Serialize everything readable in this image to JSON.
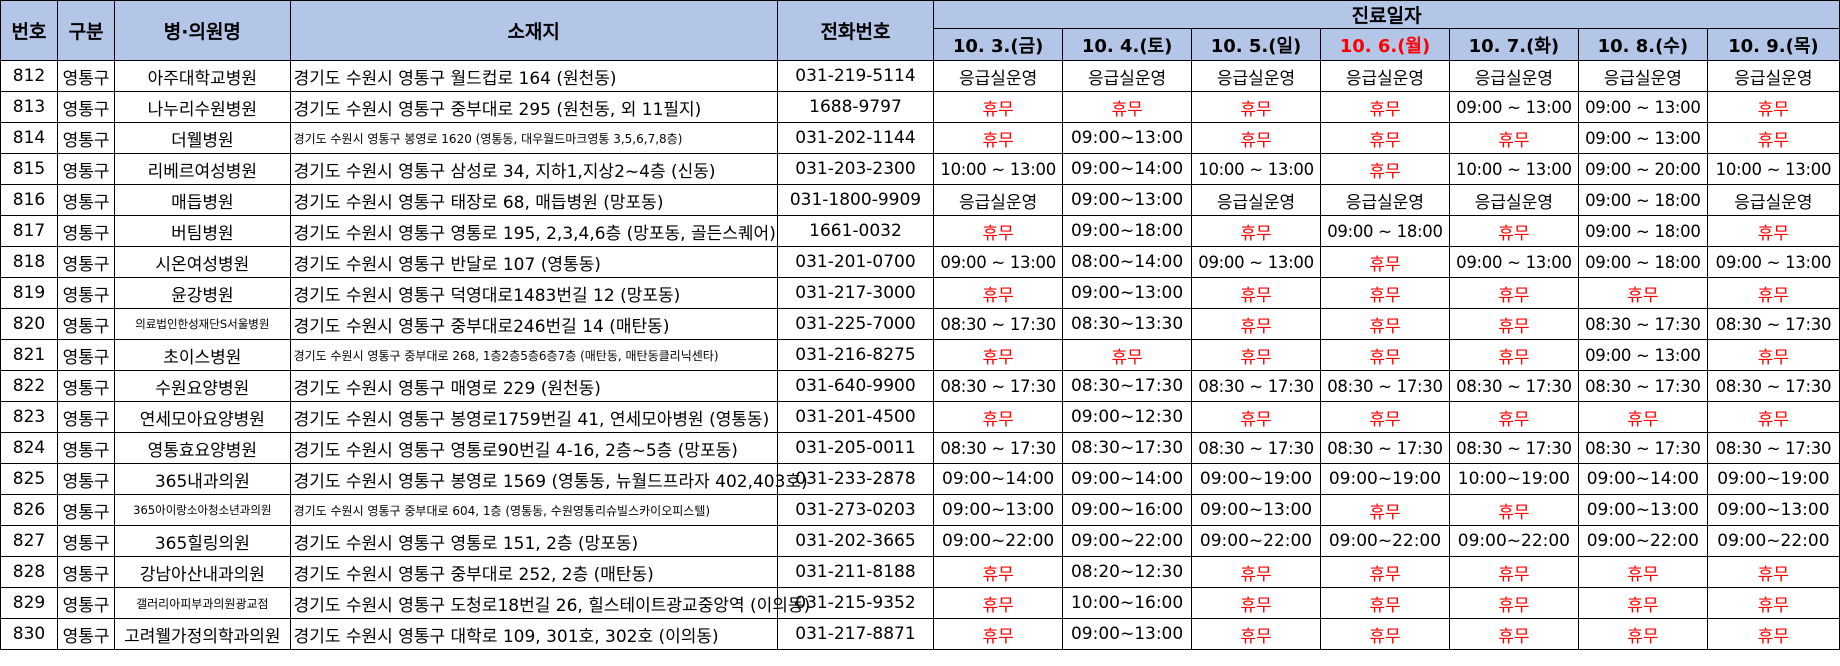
{
  "header": {
    "no": "번호",
    "category": "구분",
    "name": "병·의원명",
    "address": "소재지",
    "phone": "전화번호",
    "schedule": "진료일자",
    "dates": [
      "10. 3.(금)",
      "10. 4.(토)",
      "10. 5.(일)",
      "10. 6.(월)",
      "10. 7.(화)",
      "10. 8.(수)",
      "10. 9.(목)"
    ],
    "highlight_date_index": 3
  },
  "colors": {
    "header_bg": "#b4c6e7",
    "closed": "#ff0000"
  },
  "rows": [
    {
      "no": "812",
      "category": "영통구",
      "name": "아주대학교병원",
      "address": "경기도 수원시 영통구 월드컵로 164 (원천동)",
      "phone": "031-219-5114",
      "hours": [
        "응급실운영",
        "응급실운영",
        "응급실운영",
        "응급실운영",
        "응급실운영",
        "응급실운영",
        "응급실운영"
      ]
    },
    {
      "no": "813",
      "category": "영통구",
      "name": "나누리수원병원",
      "address": "경기도 수원시 영통구 중부대로 295 (원천동, 외 11필지)",
      "phone": "1688-9797",
      "hours": [
        "휴무",
        "휴무",
        "휴무",
        "휴무",
        "09:00 ~ 13:00",
        "09:00 ~ 13:00",
        "휴무"
      ]
    },
    {
      "no": "814",
      "category": "영통구",
      "name": "더웰병원",
      "address": "경기도 수원시 영통구 봉영로 1620 (영통동, 대우월드마크영통 3,5,6,7,8층)",
      "phone": "031-202-1144",
      "hours": [
        "휴무",
        "09:00~13:00",
        "휴무",
        "휴무",
        "휴무",
        "09:00 ~ 13:00",
        "휴무"
      ]
    },
    {
      "no": "815",
      "category": "영통구",
      "name": "리베르여성병원",
      "address": "경기도 수원시 영통구 삼성로 34, 지하1,지상2~4층 (신동)",
      "phone": "031-203-2300",
      "hours": [
        "10:00 ~ 13:00",
        "09:00~14:00",
        "10:00 ~ 13:00",
        "휴무",
        "10:00 ~ 13:00",
        "09:00 ~ 20:00",
        "10:00 ~ 13:00"
      ]
    },
    {
      "no": "816",
      "category": "영통구",
      "name": "매듭병원",
      "address": "경기도 수원시 영통구 태장로 68, 매듭병원 (망포동)",
      "phone": "031-1800-9909",
      "hours": [
        "응급실운영",
        "09:00~13:00",
        "응급실운영",
        "응급실운영",
        "응급실운영",
        "09:00 ~ 18:00",
        "응급실운영"
      ]
    },
    {
      "no": "817",
      "category": "영통구",
      "name": "버팀병원",
      "address": "경기도 수원시 영통구 영통로 195, 2,3,4,6층 (망포동, 골든스퀘어)",
      "phone": "1661-0032",
      "hours": [
        "휴무",
        "09:00~18:00",
        "휴무",
        "09:00 ~ 18:00",
        "휴무",
        "09:00 ~ 18:00",
        "휴무"
      ]
    },
    {
      "no": "818",
      "category": "영통구",
      "name": "시온여성병원",
      "address": "경기도 수원시 영통구 반달로 107 (영통동)",
      "phone": "031-201-0700",
      "hours": [
        "09:00 ~ 13:00",
        "08:00~14:00",
        "09:00 ~ 13:00",
        "휴무",
        "09:00 ~ 13:00",
        "09:00 ~ 18:00",
        "09:00 ~ 13:00"
      ]
    },
    {
      "no": "819",
      "category": "영통구",
      "name": "윤강병원",
      "address": "경기도 수원시 영통구 덕영대로1483번길 12 (망포동)",
      "phone": "031-217-3000",
      "hours": [
        "휴무",
        "09:00~13:00",
        "휴무",
        "휴무",
        "휴무",
        "휴무",
        "휴무"
      ]
    },
    {
      "no": "820",
      "category": "영통구",
      "name": "의료법인한성재단S서울병원",
      "address": "경기도 수원시 영통구 중부대로246번길 14 (매탄동)",
      "phone": "031-225-7000",
      "hours": [
        "08:30 ~ 17:30",
        "08:30~13:30",
        "휴무",
        "휴무",
        "휴무",
        "08:30 ~ 17:30",
        "08:30 ~ 17:30"
      ]
    },
    {
      "no": "821",
      "category": "영통구",
      "name": "초이스병원",
      "address": "경기도 수원시 영통구 중부대로 268, 1층2층5층6층7층 (매탄동, 매탄동클리닉센타)",
      "phone": "031-216-8275",
      "hours": [
        "휴무",
        "휴무",
        "휴무",
        "휴무",
        "휴무",
        "09:00 ~ 13:00",
        "휴무"
      ]
    },
    {
      "no": "822",
      "category": "영통구",
      "name": "수원요양병원",
      "address": "경기도 수원시 영통구 매영로 229 (원천동)",
      "phone": "031-640-9900",
      "hours": [
        "08:30 ~ 17:30",
        "08:30~17:30",
        "08:30 ~ 17:30",
        "08:30 ~ 17:30",
        "08:30 ~ 17:30",
        "08:30 ~ 17:30",
        "08:30 ~ 17:30"
      ]
    },
    {
      "no": "823",
      "category": "영통구",
      "name": "연세모아요양병원",
      "address": "경기도 수원시 영통구 봉영로1759번길 41, 연세모아병원 (영통동)",
      "phone": "031-201-4500",
      "hours": [
        "휴무",
        "09:00~12:30",
        "휴무",
        "휴무",
        "휴무",
        "휴무",
        "휴무"
      ]
    },
    {
      "no": "824",
      "category": "영통구",
      "name": "영통효요양병원",
      "address": "경기도 수원시 영통구 영통로90번길 4-16, 2층~5층 (망포동)",
      "phone": "031-205-0011",
      "hours": [
        "08:30 ~ 17:30",
        "08:30~17:30",
        "08:30 ~ 17:30",
        "08:30 ~ 17:30",
        "08:30 ~ 17:30",
        "08:30 ~ 17:30",
        "08:30 ~ 17:30"
      ]
    },
    {
      "no": "825",
      "category": "영통구",
      "name": "365내과의원",
      "address": "경기도 수원시 영통구 봉영로 1569 (영통동, 뉴월드프라자 402,403호)",
      "phone": "031-233-2878",
      "hours": [
        "09:00~14:00",
        "09:00~14:00",
        "09:00~19:00",
        "09:00~19:00",
        "10:00~19:00",
        "09:00~14:00",
        "09:00~19:00"
      ]
    },
    {
      "no": "826",
      "category": "영통구",
      "name": "365아이랑소아청소년과의원",
      "address": "경기도 수원시 영통구 중부대로 604, 1층 (영통동, 수원영통리슈빌스카이오피스텔)",
      "phone": "031-273-0203",
      "hours": [
        "09:00~13:00",
        "09:00~16:00",
        "09:00~13:00",
        "휴무",
        "휴무",
        "09:00~13:00",
        "09:00~13:00"
      ]
    },
    {
      "no": "827",
      "category": "영통구",
      "name": "365힐링의원",
      "address": "경기도 수원시 영통구 영통로 151, 2층 (망포동)",
      "phone": "031-202-3665",
      "hours": [
        "09:00~22:00",
        "09:00~22:00",
        "09:00~22:00",
        "09:00~22:00",
        "09:00~22:00",
        "09:00~22:00",
        "09:00~22:00"
      ]
    },
    {
      "no": "828",
      "category": "영통구",
      "name": "강남아산내과의원",
      "address": "경기도 수원시 영통구 중부대로 252, 2층 (매탄동)",
      "phone": "031-211-8188",
      "hours": [
        "휴무",
        "08:20~12:30",
        "휴무",
        "휴무",
        "휴무",
        "휴무",
        "휴무"
      ]
    },
    {
      "no": "829",
      "category": "영통구",
      "name": "갤러리아피부과의원광교점",
      "address": "경기도 수원시 영통구 도청로18번길 26, 힐스테이트광교중앙역 (이의동)",
      "phone": "031-215-9352",
      "hours": [
        "휴무",
        "10:00~16:00",
        "휴무",
        "휴무",
        "휴무",
        "휴무",
        "휴무"
      ]
    },
    {
      "no": "830",
      "category": "영통구",
      "name": "고려웰가정의학과의원",
      "address": "경기도 수원시 영통구 대학로 109, 301호, 302호 (이의동)",
      "phone": "031-217-8871",
      "hours": [
        "휴무",
        "09:00~13:00",
        "휴무",
        "휴무",
        "휴무",
        "휴무",
        "휴무"
      ]
    }
  ]
}
